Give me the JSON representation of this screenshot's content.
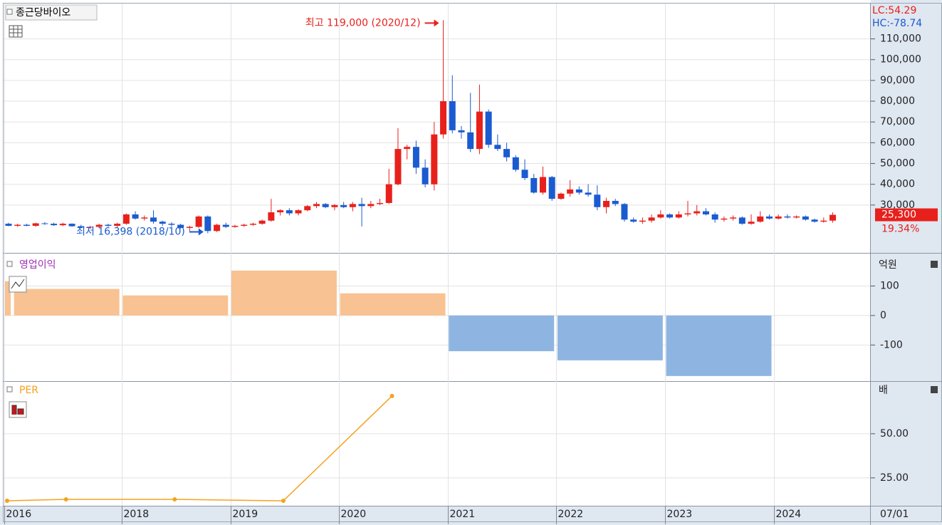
{
  "chart_data": [
    {
      "type": "candlestick",
      "title": "종근당바이오",
      "categories": [
        "2016",
        null,
        null,
        null,
        null,
        null,
        null,
        null,
        null,
        null,
        null,
        null,
        null,
        "2018",
        null,
        null,
        null,
        null,
        null,
        null,
        null,
        null,
        null,
        null,
        null,
        "2019",
        null,
        null,
        null,
        null,
        null,
        null,
        null,
        null,
        null,
        null,
        null,
        "2020",
        null,
        null,
        null,
        null,
        null,
        null,
        null,
        null,
        null,
        null,
        null,
        "2021",
        null,
        null,
        null,
        null,
        null,
        null,
        null,
        null,
        null,
        null,
        null,
        "2022",
        null,
        null,
        null,
        null,
        null,
        null,
        null,
        null,
        null,
        null,
        null,
        "2023",
        null,
        null,
        null,
        null,
        null,
        null,
        null,
        null,
        null,
        null,
        null,
        "2024",
        null,
        null,
        null,
        null,
        null,
        null
      ],
      "open": [
        21000,
        20000,
        20500,
        20000,
        21200,
        21000,
        20300,
        21000,
        19800,
        19200,
        19500,
        20500,
        20000,
        21000,
        25500,
        23500,
        24000,
        22000,
        21000,
        20500,
        19000,
        19500,
        24500,
        17500,
        20500,
        19500,
        20000,
        20500,
        21000,
        22500,
        26500,
        27500,
        26000,
        27500,
        29500,
        30500,
        29000,
        30000,
        29000,
        30500,
        29500,
        30500,
        31000,
        40000,
        57000,
        58000,
        48000,
        40000,
        64000,
        80000,
        66000,
        65000,
        57000,
        75000,
        59000,
        57000,
        53000,
        47000,
        43000,
        36000,
        43500,
        33000,
        35500,
        37500,
        36000,
        35000,
        29000,
        32000,
        30500,
        23000,
        22000,
        22500,
        24000,
        25500,
        24000,
        25500,
        26000,
        27000,
        25500,
        23000,
        23500,
        24000,
        21000,
        22000,
        24500,
        23500,
        24500,
        24000,
        24500,
        23000,
        22000,
        22500
      ],
      "high": [
        21500,
        21000,
        21000,
        21500,
        21800,
        21500,
        21500,
        21200,
        20500,
        20000,
        21000,
        21000,
        21500,
        26000,
        27000,
        25000,
        27500,
        22500,
        21800,
        21000,
        20000,
        25000,
        25000,
        21000,
        21500,
        20500,
        21000,
        21500,
        23000,
        33000,
        28000,
        28500,
        28000,
        30000,
        31500,
        31000,
        30500,
        31500,
        31500,
        33500,
        32000,
        33000,
        47500,
        67000,
        59000,
        61000,
        52000,
        70000,
        119000,
        92500,
        68000,
        84000,
        88000,
        76000,
        64000,
        60000,
        54000,
        52000,
        45000,
        48500,
        44000,
        36000,
        42000,
        39000,
        40000,
        39500,
        33500,
        33000,
        31000,
        24000,
        24000,
        25500,
        27500,
        26000,
        27000,
        32000,
        30000,
        28500,
        26500,
        24500,
        25000,
        24500,
        25500,
        27000,
        25500,
        25500,
        25500,
        25000,
        25000,
        23500,
        24000,
        26500
      ],
      "low": [
        19800,
        19500,
        19800,
        19500,
        20500,
        20000,
        19800,
        19500,
        18800,
        18500,
        19000,
        19500,
        19000,
        20500,
        23000,
        22500,
        21000,
        20000,
        19500,
        18500,
        17500,
        19000,
        16398,
        17000,
        19000,
        19000,
        19500,
        20000,
        20500,
        22000,
        25000,
        25000,
        25000,
        27000,
        28500,
        28500,
        27500,
        28500,
        27000,
        19700,
        28500,
        30000,
        30500,
        39500,
        52000,
        45000,
        38500,
        37000,
        62000,
        64500,
        62000,
        55500,
        54500,
        57500,
        56000,
        51000,
        46000,
        42000,
        35500,
        35000,
        32000,
        32500,
        34000,
        35000,
        34000,
        27500,
        26000,
        29500,
        22000,
        21500,
        21000,
        21500,
        23500,
        23500,
        23500,
        24500,
        25000,
        25000,
        21500,
        22000,
        22500,
        20500,
        20500,
        21500,
        23000,
        23000,
        23500,
        23500,
        22500,
        21500,
        21500,
        21500
      ],
      "close": [
        20000,
        20500,
        20000,
        21200,
        21000,
        20300,
        21000,
        19800,
        19200,
        19500,
        20500,
        20000,
        21000,
        25500,
        23500,
        24000,
        22000,
        21000,
        20500,
        19000,
        19500,
        24500,
        17500,
        20500,
        19500,
        20000,
        20500,
        21000,
        22500,
        26500,
        27500,
        26000,
        27500,
        29500,
        30500,
        29000,
        30000,
        29000,
        30500,
        29500,
        30500,
        31000,
        40000,
        57000,
        58000,
        48000,
        40000,
        64000,
        80000,
        66000,
        65000,
        57000,
        75000,
        59000,
        57000,
        53000,
        47000,
        43000,
        36000,
        43500,
        33000,
        35500,
        37500,
        36000,
        35000,
        29000,
        32000,
        30500,
        23000,
        22000,
        22500,
        24000,
        25500,
        24000,
        25500,
        26000,
        27000,
        25500,
        23000,
        23500,
        24000,
        21000,
        22000,
        24500,
        23500,
        24500,
        24000,
        24500,
        23000,
        22000,
        22500,
        25300
      ],
      "up_color": "#e8201c",
      "down_color": "#1a5bd0",
      "ylim": [
        8000,
        127000
      ],
      "yticks": [
        {
          "value": 30000,
          "label": "30,000"
        },
        {
          "value": 40000,
          "label": "40,000"
        },
        {
          "value": 50000,
          "label": "50,000"
        },
        {
          "value": 60000,
          "label": "60,000"
        },
        {
          "value": 70000,
          "label": "70,000"
        },
        {
          "value": 80000,
          "label": "80,000"
        },
        {
          "value": 90000,
          "label": "90,000"
        },
        {
          "value": 100000,
          "label": "100,000"
        },
        {
          "value": 110000,
          "label": "110,000"
        }
      ],
      "grid": true,
      "annotations": [
        "최고 119,000 (2020/12)",
        "최저 16,398 (2018/10)"
      ],
      "last_price": {
        "value": 25300,
        "label": "25,300"
      },
      "change_label": "19.34%",
      "indicators": [
        "LC:54.29",
        "HC:-78.74"
      ],
      "x_end_label": "07/01"
    },
    {
      "type": "bar",
      "title": "영업이익",
      "unit": "억원",
      "categories": [
        null,
        null,
        null,
        null,
        null,
        null,
        null,
        null
      ],
      "values": [
        116,
        90,
        68,
        152,
        75,
        -121,
        -152,
        -205
      ],
      "positive_color": "#f8c292",
      "negative_color": "#8eb5e2",
      "ylim": [
        -215,
        200
      ],
      "yticks": [
        -100,
        0,
        100
      ],
      "grid": true
    },
    {
      "type": "line",
      "title": "PER",
      "unit": "배",
      "categories": [
        null,
        null,
        null,
        null,
        null,
        null,
        null,
        null
      ],
      "values": [
        12,
        12.8,
        12.8,
        12,
        71.4,
        null,
        null,
        null
      ],
      "color": "#f5a21f",
      "ylim": [
        10,
        78.6
      ],
      "yticks": [
        {
          "value": 25,
          "label": "25.00"
        },
        {
          "value": 50,
          "label": "50.00"
        }
      ],
      "grid": true
    }
  ]
}
